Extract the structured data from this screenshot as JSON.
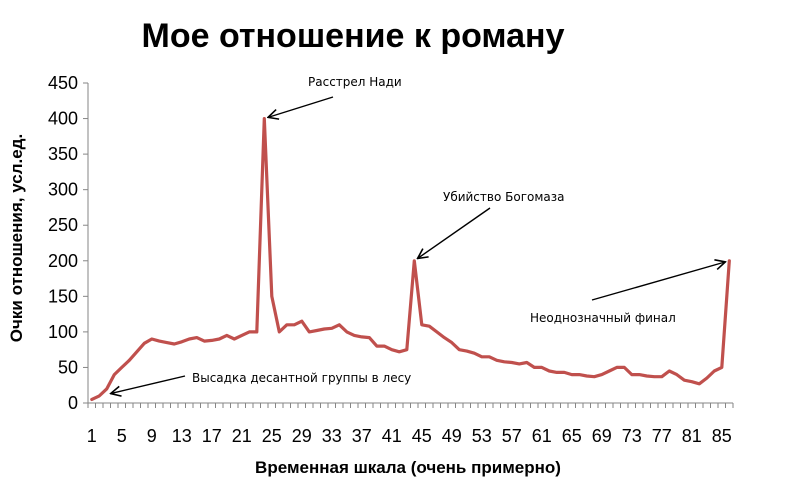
{
  "chart_data": {
    "type": "line",
    "title": "Мое отношение к роману",
    "xlabel": "Временная шкала (очень примерно)",
    "ylabel": "Очки отношения, усл.ед.",
    "ylim": [
      0,
      450
    ],
    "yticks": [
      0,
      50,
      100,
      150,
      200,
      250,
      300,
      350,
      400,
      450
    ],
    "xlim": [
      1,
      86
    ],
    "xtick_step": 4,
    "grid": false,
    "line_color": "#C0504D",
    "series": [
      {
        "values": [
          5,
          10,
          20,
          40,
          50,
          60,
          72,
          84,
          90,
          87,
          85,
          83,
          86,
          90,
          92,
          87,
          88,
          90,
          95,
          90,
          95,
          100,
          100,
          400,
          150,
          100,
          110,
          110,
          115,
          100,
          102,
          104,
          105,
          110,
          100,
          95,
          93,
          92,
          80,
          80,
          75,
          72,
          75,
          200,
          110,
          108,
          100,
          92,
          85,
          75,
          73,
          70,
          65,
          65,
          60,
          58,
          57,
          55,
          57,
          50,
          50,
          45,
          43,
          43,
          40,
          40,
          38,
          37,
          40,
          45,
          50,
          50,
          40,
          40,
          38,
          37,
          37,
          45,
          40,
          32,
          30,
          27,
          35,
          45,
          50,
          200
        ]
      }
    ],
    "annotations": [
      {
        "text": "Высадка десантной группы в лесу",
        "x": 3,
        "y": 12
      },
      {
        "text": "Расстрел Нади",
        "x": 24,
        "y": 400
      },
      {
        "text": "Убийство Богомаза",
        "x": 44,
        "y": 200
      },
      {
        "text": "Неоднозначный финал",
        "x": 86,
        "y": 200
      }
    ]
  }
}
